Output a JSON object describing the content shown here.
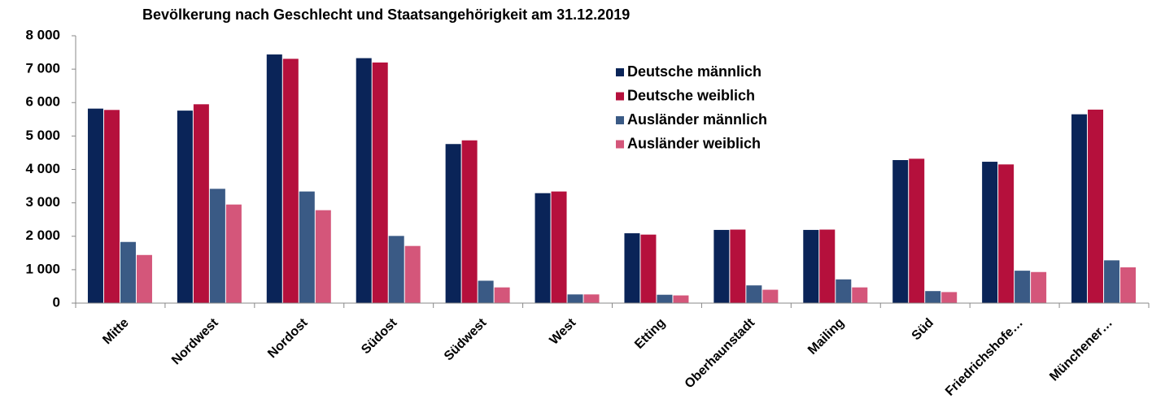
{
  "chart_data": {
    "type": "bar",
    "title": "Bevölkerung nach Geschlecht und Staatsangehörigkeit am 31.12.2019",
    "categories": [
      "Mitte",
      "Nordwest",
      "Nordost",
      "Südost",
      "Südwest",
      "West",
      "Etting",
      "Oberhaunstadt",
      "Mailing",
      "Süd",
      "Friedrichshofe…",
      "Münchener…"
    ],
    "series": [
      {
        "name": "Deutsche männlich",
        "color": "#0a2458",
        "values": [
          5820,
          5760,
          7440,
          7330,
          4760,
          3290,
          2090,
          2190,
          2190,
          4280,
          4230,
          5650
        ]
      },
      {
        "name": "Deutsche weiblich",
        "color": "#b5103c",
        "values": [
          5780,
          5950,
          7310,
          7200,
          4870,
          3340,
          2050,
          2200,
          2200,
          4320,
          4150,
          5790
        ]
      },
      {
        "name": "Ausländer männlich",
        "color": "#3a5a85",
        "values": [
          1830,
          3420,
          3340,
          2010,
          670,
          260,
          250,
          530,
          710,
          360,
          970,
          1280
        ]
      },
      {
        "name": "Ausländer weiblich",
        "color": "#d4567a",
        "values": [
          1440,
          2950,
          2780,
          1710,
          470,
          260,
          230,
          400,
          470,
          330,
          930,
          1070
        ]
      }
    ],
    "ylim": [
      0,
      8000
    ],
    "yticks": [
      0,
      {
        "value": 1000,
        "label": "1 000"
      },
      {
        "value": 2000,
        "label": "2 000"
      },
      {
        "value": 3000,
        "label": "3 000"
      },
      {
        "value": 4000,
        "label": "4 000"
      },
      {
        "value": 5000,
        "label": "5 000"
      },
      {
        "value": 6000,
        "label": "6 000"
      },
      {
        "value": 7000,
        "label": "7 000"
      },
      {
        "value": 8000,
        "label": "8 000"
      }
    ],
    "grid": false,
    "legend": "top-right"
  }
}
